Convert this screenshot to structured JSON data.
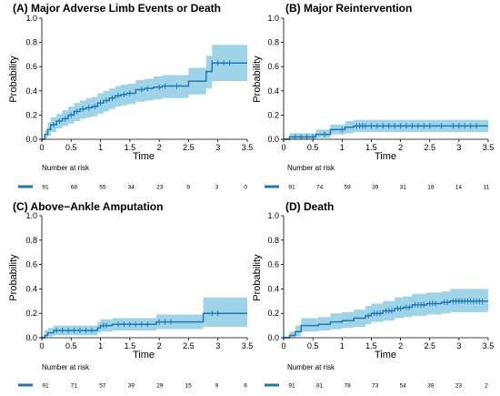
{
  "colors": {
    "line": "#1f77b4",
    "band": "#9fd4e8",
    "axis": "#000000"
  },
  "risk_table_label": "Number at risk",
  "chart_data": [
    {
      "type": "line",
      "title": "(A) Major Adverse Limb Events or Death",
      "xlabel": "Time",
      "ylabel": "Probability",
      "xlim": [
        0,
        3.5
      ],
      "ylim": [
        0,
        1
      ],
      "xticks": [
        "0",
        "0.5",
        "1",
        "1.5",
        "2",
        "2.5",
        "3",
        "3.5"
      ],
      "yticks": [
        "0.0",
        "0.2",
        "0.4",
        "0.6",
        "0.8",
        "1.0"
      ],
      "step": [
        [
          0,
          0
        ],
        [
          0.05,
          0.04
        ],
        [
          0.1,
          0.08
        ],
        [
          0.15,
          0.12
        ],
        [
          0.25,
          0.15
        ],
        [
          0.35,
          0.17
        ],
        [
          0.45,
          0.2
        ],
        [
          0.55,
          0.23
        ],
        [
          0.65,
          0.25
        ],
        [
          0.75,
          0.26
        ],
        [
          0.85,
          0.27
        ],
        [
          0.95,
          0.3
        ],
        [
          1.05,
          0.32
        ],
        [
          1.15,
          0.34
        ],
        [
          1.25,
          0.36
        ],
        [
          1.35,
          0.37
        ],
        [
          1.45,
          0.38
        ],
        [
          1.6,
          0.41
        ],
        [
          1.75,
          0.42
        ],
        [
          1.9,
          0.43
        ],
        [
          2.05,
          0.44
        ],
        [
          2.2,
          0.44
        ],
        [
          2.5,
          0.48
        ],
        [
          2.8,
          0.56
        ],
        [
          2.9,
          0.63
        ],
        [
          3.5,
          0.63
        ]
      ],
      "upper": [
        [
          0,
          0
        ],
        [
          0.05,
          0.08
        ],
        [
          0.1,
          0.14
        ],
        [
          0.15,
          0.18
        ],
        [
          0.25,
          0.21
        ],
        [
          0.35,
          0.24
        ],
        [
          0.45,
          0.27
        ],
        [
          0.55,
          0.3
        ],
        [
          0.65,
          0.32
        ],
        [
          0.75,
          0.34
        ],
        [
          0.85,
          0.35
        ],
        [
          0.95,
          0.38
        ],
        [
          1.05,
          0.4
        ],
        [
          1.15,
          0.42
        ],
        [
          1.25,
          0.44
        ],
        [
          1.35,
          0.45
        ],
        [
          1.45,
          0.46
        ],
        [
          1.6,
          0.49
        ],
        [
          1.75,
          0.5
        ],
        [
          1.9,
          0.52
        ],
        [
          2.05,
          0.53
        ],
        [
          2.2,
          0.53
        ],
        [
          2.5,
          0.59
        ],
        [
          2.8,
          0.69
        ],
        [
          2.9,
          0.78
        ],
        [
          3.5,
          0.78
        ]
      ],
      "lower": [
        [
          0,
          0
        ],
        [
          0.05,
          0.01
        ],
        [
          0.1,
          0.03
        ],
        [
          0.15,
          0.06
        ],
        [
          0.25,
          0.09
        ],
        [
          0.35,
          0.11
        ],
        [
          0.45,
          0.13
        ],
        [
          0.55,
          0.15
        ],
        [
          0.65,
          0.17
        ],
        [
          0.75,
          0.18
        ],
        [
          0.85,
          0.19
        ],
        [
          0.95,
          0.21
        ],
        [
          1.05,
          0.23
        ],
        [
          1.15,
          0.25
        ],
        [
          1.25,
          0.27
        ],
        [
          1.35,
          0.28
        ],
        [
          1.45,
          0.29
        ],
        [
          1.6,
          0.31
        ],
        [
          1.75,
          0.32
        ],
        [
          1.9,
          0.33
        ],
        [
          2.05,
          0.34
        ],
        [
          2.2,
          0.34
        ],
        [
          2.5,
          0.37
        ],
        [
          2.8,
          0.42
        ],
        [
          2.9,
          0.48
        ],
        [
          3.5,
          0.48
        ]
      ],
      "censor": [
        0.2,
        0.3,
        0.4,
        0.5,
        0.6,
        0.7,
        0.8,
        0.9,
        1.0,
        1.1,
        1.2,
        1.3,
        1.4,
        1.5,
        1.7,
        1.8,
        2.0,
        2.1,
        2.3,
        2.9,
        3.0,
        3.1,
        3.2
      ],
      "risk": [
        "91",
        "68",
        "55",
        "34",
        "23",
        "9",
        "3",
        "0"
      ]
    },
    {
      "type": "line",
      "title": "(B) Major Reintervention",
      "xlabel": "Time",
      "ylabel": "Probability",
      "xlim": [
        0,
        3.5
      ],
      "ylim": [
        0,
        1
      ],
      "xticks": [
        "0",
        "0.5",
        "1",
        "1.5",
        "2",
        "2.5",
        "3",
        "3.5"
      ],
      "yticks": [
        "0.0",
        "0.2",
        "0.4",
        "0.6",
        "0.8",
        "1.0"
      ],
      "step": [
        [
          0,
          0
        ],
        [
          0.1,
          0.02
        ],
        [
          0.55,
          0.04
        ],
        [
          0.8,
          0.08
        ],
        [
          1.05,
          0.1
        ],
        [
          1.2,
          0.11
        ],
        [
          3.5,
          0.11
        ]
      ],
      "upper": [
        [
          0,
          0.01
        ],
        [
          0.1,
          0.05
        ],
        [
          0.55,
          0.08
        ],
        [
          0.8,
          0.12
        ],
        [
          1.05,
          0.15
        ],
        [
          1.2,
          0.16
        ],
        [
          3.5,
          0.16
        ]
      ],
      "lower": [
        [
          0,
          0
        ],
        [
          0.1,
          0
        ],
        [
          0.55,
          0.01
        ],
        [
          0.8,
          0.04
        ],
        [
          1.05,
          0.05
        ],
        [
          1.2,
          0.06
        ],
        [
          3.5,
          0.06
        ]
      ],
      "censor": [
        0.2,
        0.3,
        0.4,
        0.5,
        0.7,
        1.0,
        1.25,
        1.3,
        1.35,
        1.4,
        1.5,
        1.6,
        1.7,
        1.8,
        1.9,
        2.0,
        2.1,
        2.2,
        2.3,
        2.4,
        2.5,
        2.7,
        2.9,
        3.0,
        3.1,
        3.2,
        3.3
      ],
      "risk": [
        "91",
        "74",
        "59",
        "39",
        "31",
        "18",
        "14",
        "11"
      ]
    },
    {
      "type": "line",
      "title": "(C) Above−Ankle Amputation",
      "xlabel": "Time",
      "ylabel": "Probability",
      "xlim": [
        0,
        3.5
      ],
      "ylim": [
        0,
        1
      ],
      "xticks": [
        "0",
        "0.5",
        "1",
        "1.5",
        "2",
        "2.5",
        "3",
        "3.5"
      ],
      "yticks": [
        "0.0",
        "0.2",
        "0.4",
        "0.6",
        "0.8",
        "1.0"
      ],
      "step": [
        [
          0,
          0
        ],
        [
          0.05,
          0.02
        ],
        [
          0.1,
          0.04
        ],
        [
          0.2,
          0.06
        ],
        [
          0.95,
          0.08
        ],
        [
          1.0,
          0.1
        ],
        [
          1.2,
          0.11
        ],
        [
          1.95,
          0.13
        ],
        [
          2.75,
          0.2
        ],
        [
          3.5,
          0.2
        ]
      ],
      "upper": [
        [
          0,
          0.01
        ],
        [
          0.05,
          0.06
        ],
        [
          0.1,
          0.08
        ],
        [
          0.2,
          0.1
        ],
        [
          0.95,
          0.13
        ],
        [
          1.0,
          0.15
        ],
        [
          1.2,
          0.16
        ],
        [
          1.95,
          0.19
        ],
        [
          2.75,
          0.33
        ],
        [
          3.5,
          0.33
        ]
      ],
      "lower": [
        [
          0,
          0
        ],
        [
          0.05,
          0
        ],
        [
          0.1,
          0.01
        ],
        [
          0.2,
          0.02
        ],
        [
          0.95,
          0.04
        ],
        [
          1.0,
          0.05
        ],
        [
          1.2,
          0.06
        ],
        [
          1.95,
          0.07
        ],
        [
          2.75,
          0.09
        ],
        [
          3.5,
          0.09
        ]
      ],
      "censor": [
        0.25,
        0.35,
        0.45,
        0.55,
        0.65,
        0.75,
        0.85,
        1.05,
        1.1,
        1.3,
        1.4,
        1.5,
        1.6,
        1.7,
        1.8,
        2.0,
        2.1,
        2.2,
        2.9,
        3.0
      ],
      "risk": [
        "91",
        "71",
        "57",
        "39",
        "29",
        "15",
        "9",
        "6"
      ]
    },
    {
      "type": "line",
      "title": "(D) Death",
      "xlabel": "Time",
      "ylabel": "Probability",
      "xlim": [
        0,
        3.5
      ],
      "ylim": [
        0,
        1
      ],
      "xticks": [
        "0",
        "0.5",
        "1",
        "1.5",
        "2",
        "2.5",
        "3",
        "3.5"
      ],
      "yticks": [
        "0.0",
        "0.2",
        "0.4",
        "0.6",
        "0.8",
        "1.0"
      ],
      "step": [
        [
          0,
          0
        ],
        [
          0.1,
          0.02
        ],
        [
          0.2,
          0.05
        ],
        [
          0.3,
          0.1
        ],
        [
          0.6,
          0.11
        ],
        [
          0.8,
          0.13
        ],
        [
          1.0,
          0.14
        ],
        [
          1.2,
          0.16
        ],
        [
          1.4,
          0.18
        ],
        [
          1.5,
          0.2
        ],
        [
          1.7,
          0.22
        ],
        [
          1.9,
          0.24
        ],
        [
          2.05,
          0.25
        ],
        [
          2.2,
          0.27
        ],
        [
          2.45,
          0.28
        ],
        [
          2.7,
          0.29
        ],
        [
          2.85,
          0.3
        ],
        [
          3.5,
          0.3
        ]
      ],
      "upper": [
        [
          0,
          0.01
        ],
        [
          0.1,
          0.05
        ],
        [
          0.2,
          0.1
        ],
        [
          0.3,
          0.16
        ],
        [
          0.6,
          0.17
        ],
        [
          0.8,
          0.2
        ],
        [
          1.0,
          0.21
        ],
        [
          1.2,
          0.23
        ],
        [
          1.4,
          0.26
        ],
        [
          1.5,
          0.28
        ],
        [
          1.7,
          0.3
        ],
        [
          1.9,
          0.33
        ],
        [
          2.05,
          0.34
        ],
        [
          2.2,
          0.36
        ],
        [
          2.45,
          0.37
        ],
        [
          2.7,
          0.38
        ],
        [
          2.85,
          0.4
        ],
        [
          3.5,
          0.4
        ]
      ],
      "lower": [
        [
          0,
          0
        ],
        [
          0.1,
          0
        ],
        [
          0.2,
          0.01
        ],
        [
          0.3,
          0.05
        ],
        [
          0.6,
          0.06
        ],
        [
          0.8,
          0.07
        ],
        [
          1.0,
          0.08
        ],
        [
          1.2,
          0.09
        ],
        [
          1.4,
          0.11
        ],
        [
          1.5,
          0.13
        ],
        [
          1.7,
          0.14
        ],
        [
          1.9,
          0.16
        ],
        [
          2.05,
          0.17
        ],
        [
          2.2,
          0.18
        ],
        [
          2.45,
          0.19
        ],
        [
          2.7,
          0.2
        ],
        [
          2.85,
          0.21
        ],
        [
          3.5,
          0.21
        ]
      ],
      "censor": [
        1.45,
        1.55,
        1.6,
        1.65,
        1.75,
        1.8,
        1.85,
        1.95,
        2.0,
        2.1,
        2.15,
        2.25,
        2.3,
        2.35,
        2.4,
        2.5,
        2.55,
        2.6,
        2.75,
        2.8,
        2.9,
        2.95,
        3.0,
        3.05,
        3.1,
        3.15,
        3.2,
        3.25,
        3.3,
        3.35,
        3.4
      ],
      "risk": [
        "91",
        "81",
        "78",
        "73",
        "54",
        "39",
        "23",
        "2"
      ]
    }
  ]
}
